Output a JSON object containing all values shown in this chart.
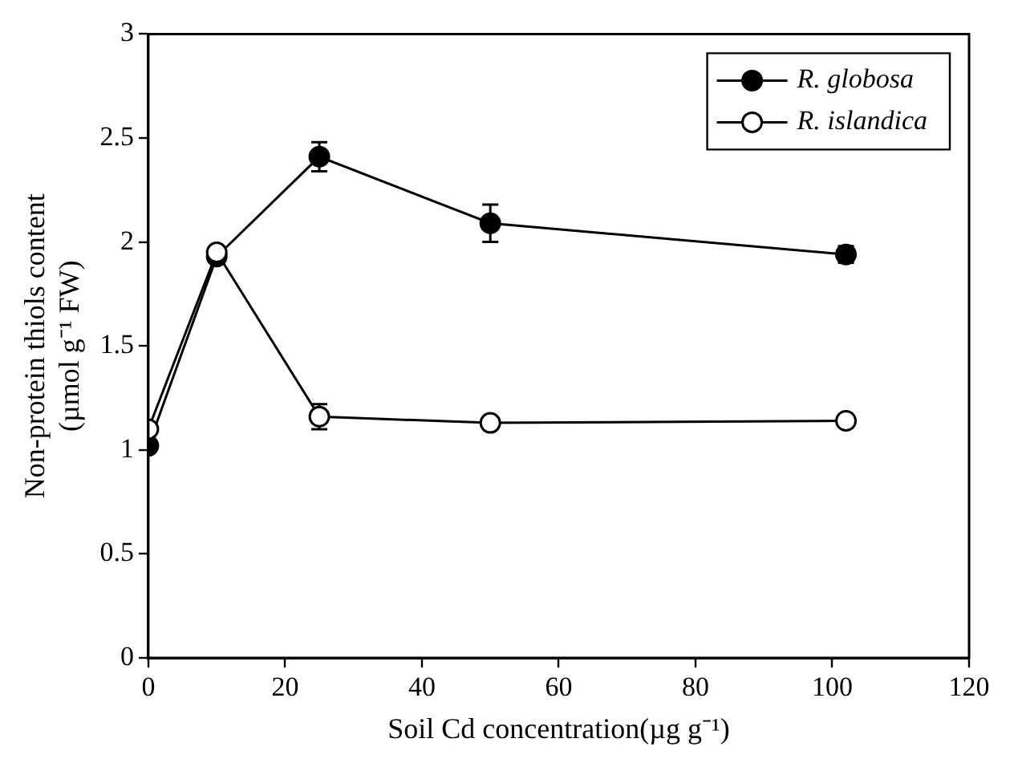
{
  "chart_data": {
    "type": "line",
    "xlabel": "Soil Cd concentration(µg g⁻¹)",
    "ylabel": "Non-protein thiols content\n(µmol g⁻¹ FW)",
    "x": [
      0,
      10,
      25,
      50,
      102
    ],
    "series": [
      {
        "name": "R. globosa",
        "color": "#000000",
        "values": [
          1.02,
          1.93,
          2.41,
          2.09,
          1.94
        ],
        "errors": [
          null,
          null,
          0.07,
          0.09,
          0.04
        ]
      },
      {
        "name": "R. islandica",
        "color": "#ffffff",
        "values": [
          1.1,
          1.95,
          1.16,
          1.13,
          1.14
        ],
        "errors": [
          null,
          null,
          0.06,
          null,
          null
        ]
      }
    ],
    "xlim": [
      0,
      120
    ],
    "xticks": [
      0,
      20,
      40,
      60,
      80,
      100,
      120
    ],
    "ylim": [
      0,
      3
    ],
    "yticks": [
      0,
      0.5,
      1,
      1.5,
      2,
      2.5,
      3
    ],
    "grid": false,
    "legend": "top right",
    "marker": "circle",
    "line_style": "solid"
  }
}
